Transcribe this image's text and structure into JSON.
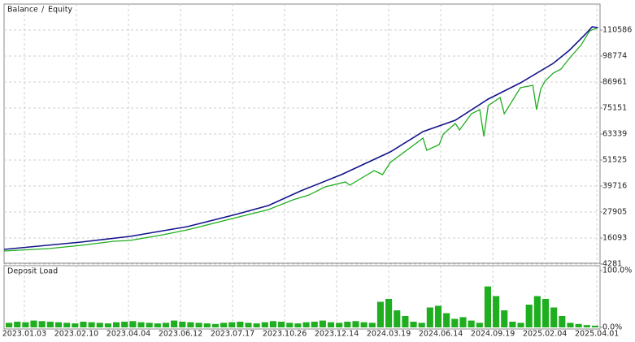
{
  "chart_data": [
    {
      "type": "line",
      "legend_separator": "/",
      "grid": true,
      "xlim": [
        -0.39,
        11.06
      ],
      "xticks": [
        {
          "value": 0,
          "label": "2023.01.03"
        },
        {
          "value": 1,
          "label": "2023.02.10"
        },
        {
          "value": 2,
          "label": "2023.04.04"
        },
        {
          "value": 3,
          "label": "2023.06.12"
        },
        {
          "value": 4,
          "label": "2023.07.17"
        },
        {
          "value": 5,
          "label": "2023.10.26"
        },
        {
          "value": 6,
          "label": "2023.12.14"
        },
        {
          "value": 7,
          "label": "2024.03.19"
        },
        {
          "value": 8,
          "label": "2024.06.14"
        },
        {
          "value": 9,
          "label": "2024.09.19"
        },
        {
          "value": 10,
          "label": "2025.02.04"
        },
        {
          "value": 11,
          "label": "2025.04.01"
        }
      ],
      "ylim": [
        4281,
        122404
      ],
      "yticks": [
        4281,
        16093,
        27905,
        39716,
        51525,
        63339,
        75151,
        86961,
        98774,
        110586
      ],
      "series": [
        {
          "name": "Balance",
          "color": "#14148c",
          "x": [
            -0.39,
            1.09,
            2.03,
            3.13,
            4.06,
            4.69,
            5.31,
            6.09,
            7.03,
            7.66,
            8.28,
            8.91,
            9.53,
            10.16,
            10.47,
            10.78,
            10.91,
            11.02
          ],
          "values": [
            10925,
            14247,
            16830,
            21260,
            26796,
            30856,
            37500,
            44882,
            55217,
            64444,
            69612,
            79208,
            86590,
            95449,
            101354,
            108736,
            112058,
            111689
          ]
        },
        {
          "name": "Equity",
          "color": "#1fae1f",
          "x": [
            -0.39,
            0.47,
            1.09,
            1.72,
            2.03,
            2.66,
            3.13,
            4.06,
            4.69,
            5.16,
            5.47,
            5.78,
            6.17,
            6.25,
            6.72,
            6.88,
            7.03,
            7.66,
            7.73,
            7.97,
            8.05,
            8.28,
            8.36,
            8.59,
            8.75,
            8.83,
            8.91,
            9.14,
            9.22,
            9.53,
            9.77,
            9.84,
            9.92,
            10.0,
            10.16,
            10.31,
            10.47,
            10.7,
            10.86,
            11.02
          ],
          "values": [
            10187,
            11294,
            12770,
            14616,
            14985,
            17569,
            19783,
            25320,
            29011,
            33440,
            35655,
            39346,
            41560,
            40084,
            46728,
            44882,
            50419,
            61492,
            55955,
            58539,
            63337,
            68135,
            65183,
            72565,
            74410,
            62230,
            76256,
            79947,
            72565,
            84376,
            85483,
            74410,
            83638,
            87329,
            91020,
            92865,
            97663,
            103938,
            110213,
            111689
          ]
        }
      ]
    },
    {
      "type": "bar",
      "title": "Deposit Load",
      "color": "#1fae1f",
      "ylim": [
        0,
        100
      ],
      "yticks": [
        {
          "value": 100,
          "label": "100.0%"
        },
        {
          "value": 0,
          "label": "0.0%"
        }
      ],
      "categories": [
        null,
        null,
        null,
        null,
        null,
        null,
        null,
        null,
        null,
        null,
        null,
        null,
        null,
        null,
        null,
        null,
        null,
        null,
        null,
        null,
        null,
        null,
        null,
        null,
        null,
        null,
        null,
        null,
        null,
        null,
        null,
        null,
        null,
        null,
        null,
        null,
        null,
        null,
        null,
        null,
        null,
        null,
        null,
        null,
        null,
        null,
        null,
        null,
        null,
        null,
        null,
        null,
        null,
        null,
        null,
        null,
        null,
        null,
        null,
        null,
        null,
        null,
        null,
        null,
        null,
        null,
        null,
        null,
        null,
        null,
        null,
        null
      ],
      "values": [
        8,
        10,
        9,
        12,
        11,
        10,
        9,
        8,
        7,
        10,
        9,
        8,
        7,
        9,
        10,
        11,
        9,
        8,
        7,
        8,
        12,
        10,
        9,
        8,
        7,
        6,
        8,
        9,
        10,
        8,
        7,
        9,
        11,
        10,
        8,
        7,
        9,
        10,
        12,
        9,
        8,
        10,
        11,
        9,
        8,
        45,
        50,
        30,
        20,
        10,
        8,
        35,
        38,
        25,
        15,
        18,
        12,
        8,
        72,
        55,
        30,
        10,
        8,
        40,
        55,
        50,
        35,
        20,
        8,
        6,
        4,
        3
      ]
    }
  ]
}
